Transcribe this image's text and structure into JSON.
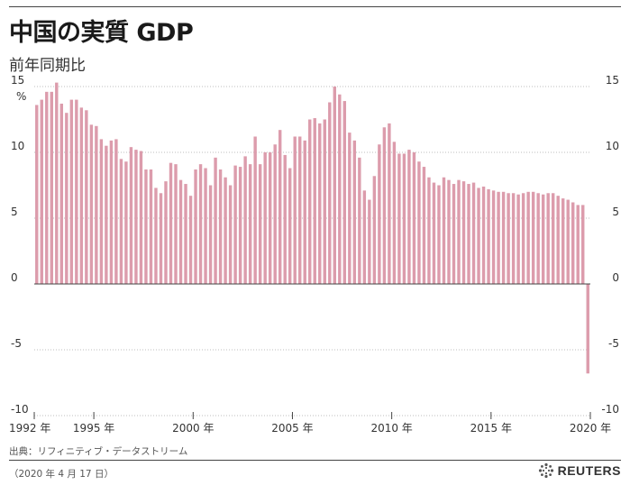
{
  "header": {
    "title": "中国の実質 GDP",
    "subtitle": "前年同期比"
  },
  "footer": {
    "source": "出典：リフィニティブ・データストリーム",
    "date": "（2020 年 4 月 17 日）",
    "brand": "REUTERS"
  },
  "colors": {
    "bar": "#dc9cac",
    "highlight": "#c0155e",
    "grid": "#bdbdbd",
    "zero_line": "#444444"
  },
  "chart_data": {
    "type": "bar",
    "frequency": "quarterly",
    "ylim": [
      -10,
      15
    ],
    "yticks": [
      15,
      10,
      5,
      0,
      -5,
      -10
    ],
    "yunit": "%",
    "grid": true,
    "x_start_year": 1992,
    "x_end_year": 2020,
    "xtick_labels": [
      "1992 年",
      "1995 年",
      "2000 年",
      "2005 年",
      "2010 年",
      "2015 年",
      "2020 年"
    ],
    "xtick_years": [
      1992,
      1995,
      2000,
      2005,
      2010,
      2015,
      2020
    ],
    "values": [
      13.6,
      14.0,
      14.6,
      14.6,
      15.3,
      13.7,
      13.0,
      14.0,
      14.0,
      13.4,
      13.2,
      12.1,
      12.0,
      11.0,
      10.5,
      10.9,
      11.0,
      9.5,
      9.3,
      10.4,
      10.2,
      10.1,
      8.7,
      8.7,
      7.3,
      6.9,
      7.8,
      9.2,
      9.1,
      7.9,
      7.6,
      6.7,
      8.7,
      9.1,
      8.8,
      7.5,
      9.6,
      8.7,
      8.1,
      7.5,
      9.0,
      8.9,
      9.7,
      9.1,
      11.2,
      9.1,
      10.0,
      10.0,
      10.6,
      11.7,
      9.8,
      8.8,
      11.2,
      11.2,
      10.9,
      12.5,
      12.6,
      12.2,
      12.5,
      13.8,
      15.0,
      14.4,
      13.9,
      11.5,
      10.9,
      9.6,
      7.1,
      6.4,
      8.2,
      10.6,
      11.9,
      12.2,
      10.8,
      9.9,
      9.9,
      10.2,
      10.0,
      9.3,
      8.9,
      8.1,
      7.7,
      7.5,
      8.1,
      7.9,
      7.6,
      7.9,
      7.8,
      7.6,
      7.7,
      7.3,
      7.4,
      7.2,
      7.1,
      7.0,
      7.0,
      6.9,
      6.9,
      6.8,
      6.9,
      7.0,
      7.0,
      6.9,
      6.8,
      6.9,
      6.9,
      6.7,
      6.5,
      6.4,
      6.2,
      6.0,
      6.0,
      -6.8
    ],
    "annotation": {
      "text": "-6.8%",
      "index": 112
    }
  }
}
